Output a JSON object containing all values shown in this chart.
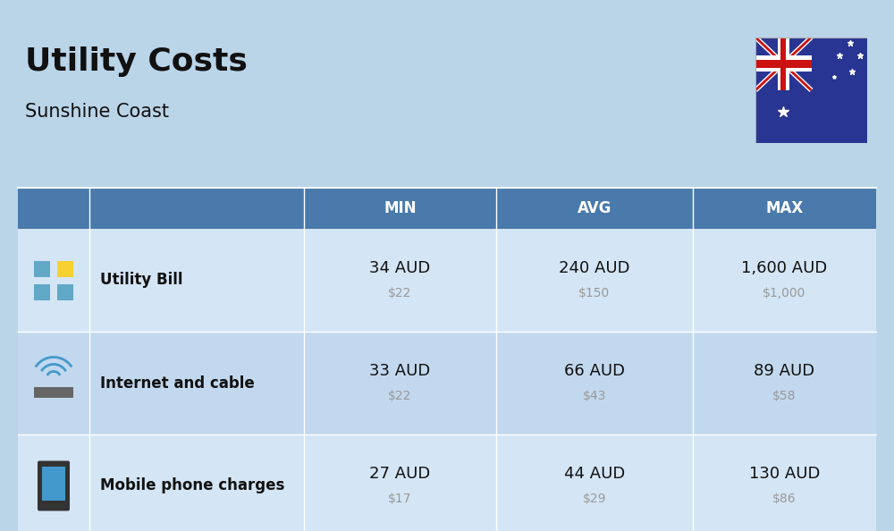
{
  "title": "Utility Costs",
  "subtitle": "Sunshine Coast",
  "background_color": "#bad4e8",
  "header_color": "#4a7aab",
  "header_text_color": "#ffffff",
  "row_colors": [
    "#d4e5f5",
    "#c2d8ee"
  ],
  "cell_text_color": "#111111",
  "secondary_text_color": "#999999",
  "columns": [
    "MIN",
    "AVG",
    "MAX"
  ],
  "rows": [
    {
      "label": "Utility Bill",
      "min_aud": "34 AUD",
      "min_usd": "$22",
      "avg_aud": "240 AUD",
      "avg_usd": "$150",
      "max_aud": "1,600 AUD",
      "max_usd": "$1,000"
    },
    {
      "label": "Internet and cable",
      "min_aud": "33 AUD",
      "min_usd": "$22",
      "avg_aud": "66 AUD",
      "avg_usd": "$43",
      "max_aud": "89 AUD",
      "max_usd": "$58"
    },
    {
      "label": "Mobile phone charges",
      "min_aud": "27 AUD",
      "min_usd": "$17",
      "avg_aud": "44 AUD",
      "avg_usd": "$29",
      "max_aud": "130 AUD",
      "max_usd": "$86"
    }
  ],
  "title_fontsize": 26,
  "subtitle_fontsize": 15,
  "header_fontsize": 12,
  "label_fontsize": 12,
  "value_fontsize": 13,
  "secondary_fontsize": 10
}
